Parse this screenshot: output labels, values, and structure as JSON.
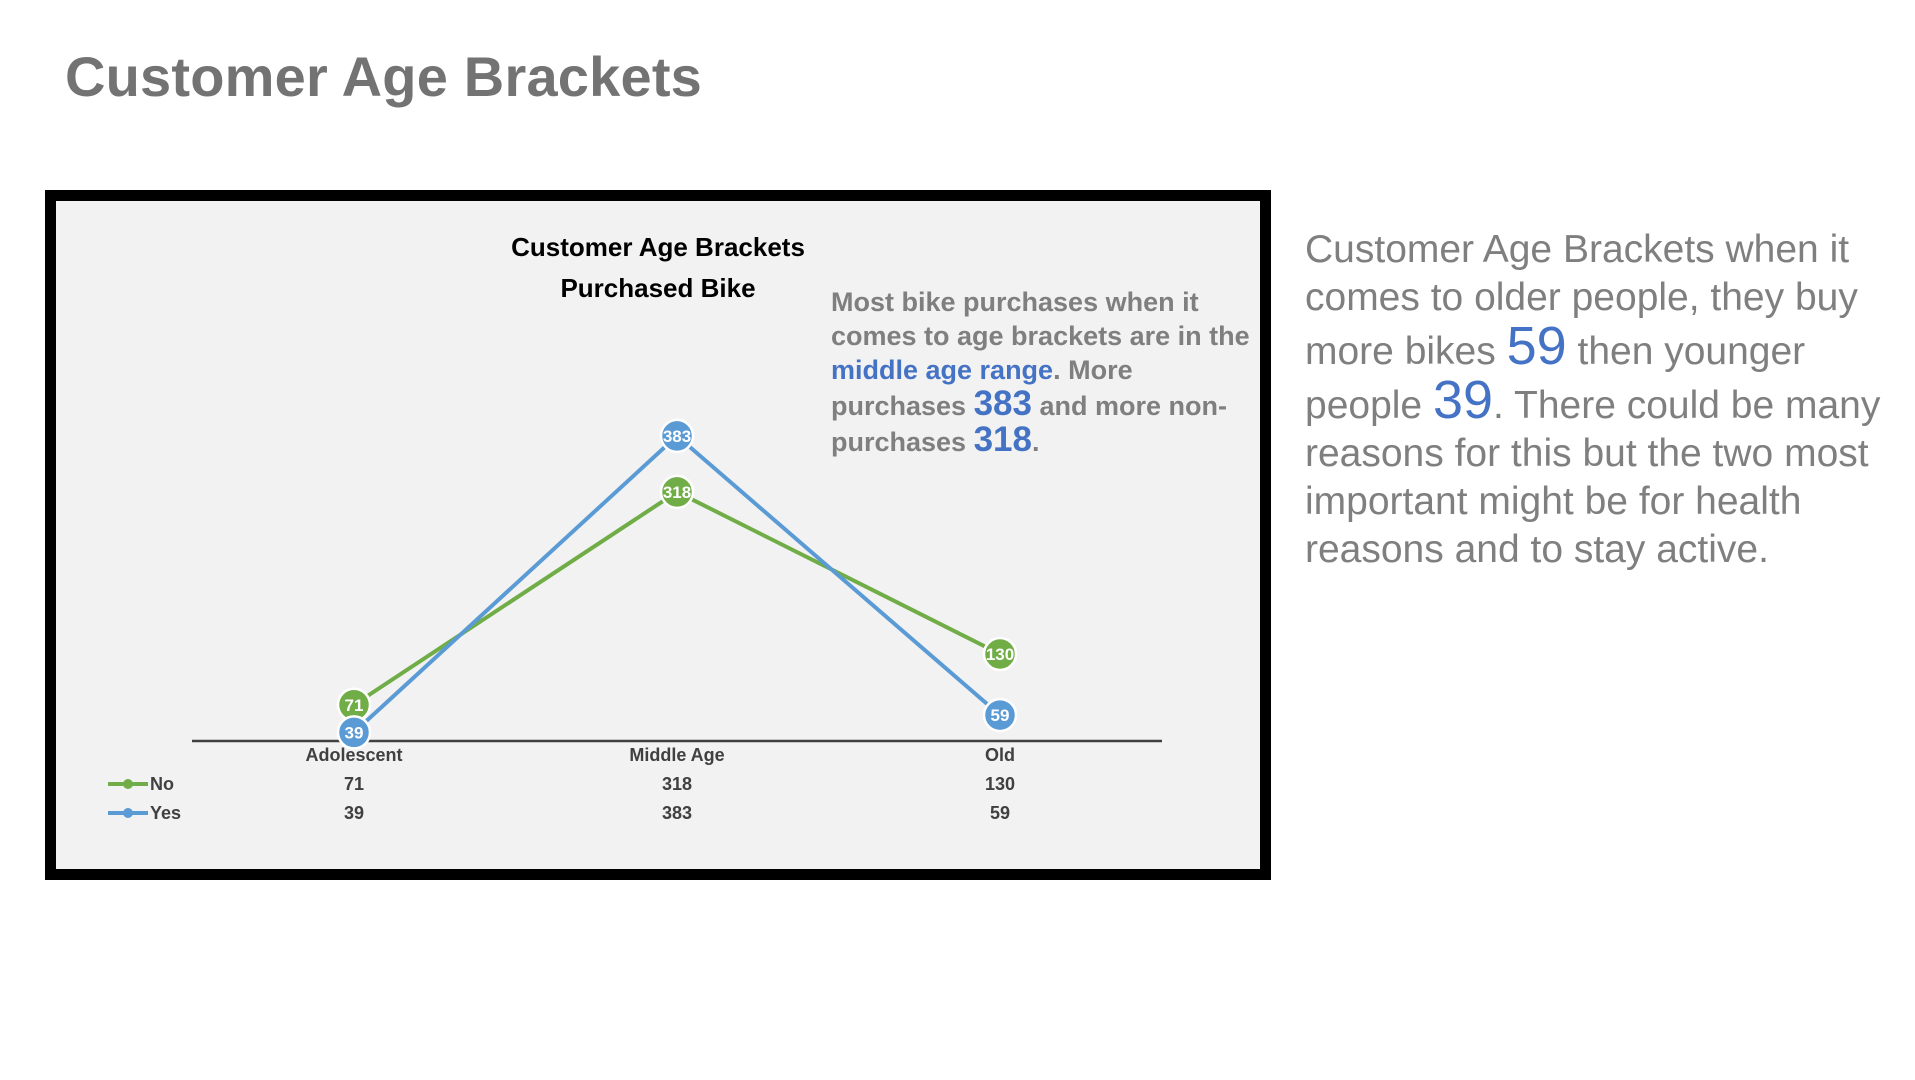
{
  "page": {
    "title": "Customer Age Brackets"
  },
  "chart_note": {
    "part1": "Most bike purchases when it comes to age brackets are in the ",
    "highlight": "middle age range",
    "part2": ". More purchases ",
    "num1": "383",
    "part3": " and more non-purchases ",
    "num2": "318",
    "part4": "."
  },
  "side_text": {
    "part1": "Customer Age Brackets when it comes to older people, they buy more bikes ",
    "num1": "59",
    "part2": " then younger people ",
    "num2": "39",
    "part3": ". There could be many reasons for this but the two most important might be for health reasons and to stay active."
  },
  "chart_data": {
    "type": "line",
    "title": "Customer Age Brackets",
    "subtitle": "Purchased  Bike",
    "categories": [
      "Adolescent",
      "Middle Age",
      "Old"
    ],
    "series": [
      {
        "name": "No",
        "values": [
          71,
          318,
          130
        ],
        "color": "#70ad47"
      },
      {
        "name": "Yes",
        "values": [
          39,
          383,
          59
        ],
        "color": "#5b9bd5"
      }
    ],
    "ylim": [
      0,
      420
    ],
    "grid": false,
    "data_table": true,
    "legend": "data-table-left"
  }
}
